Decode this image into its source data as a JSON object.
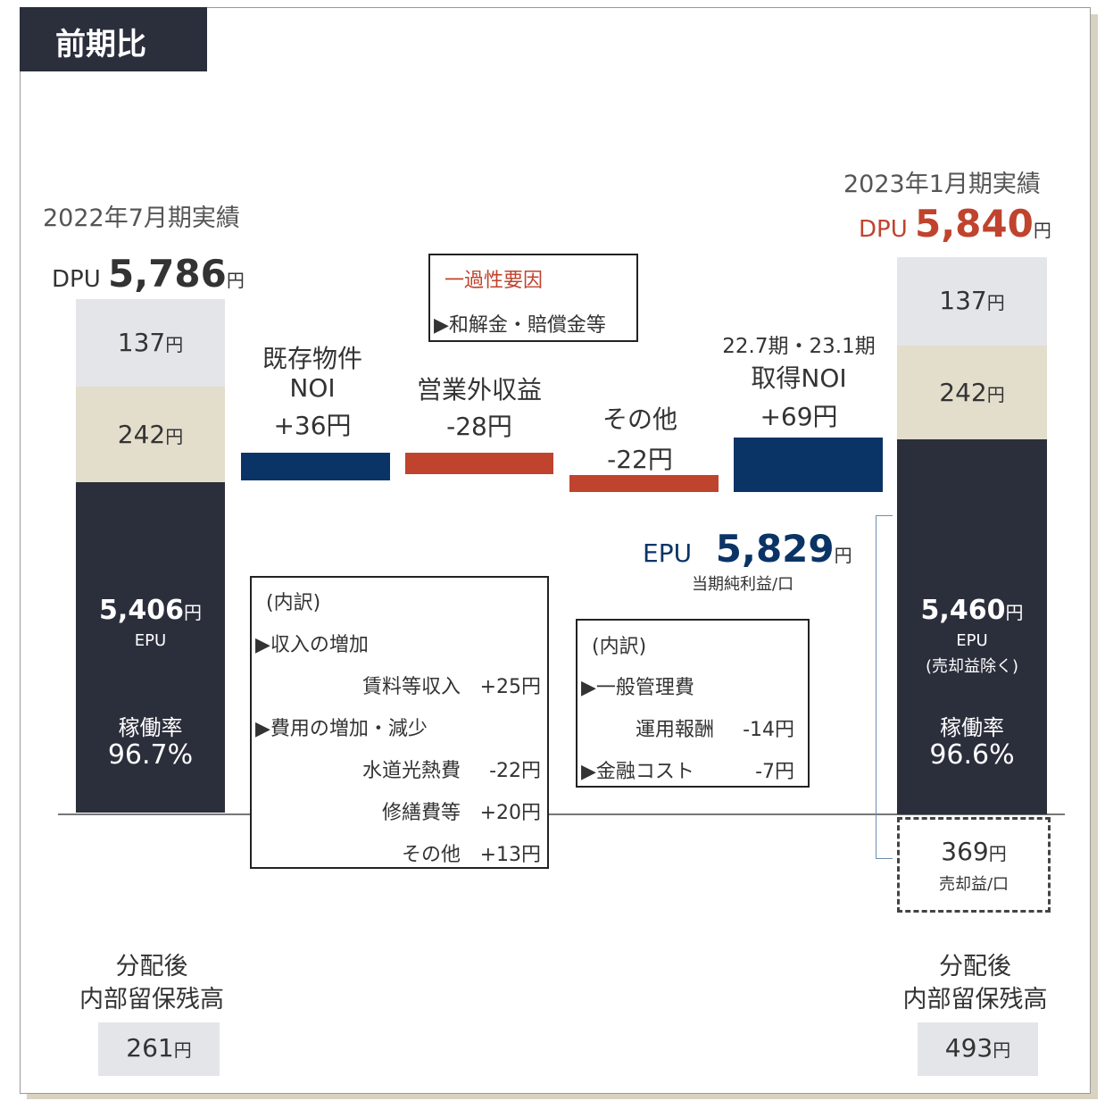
{
  "header": {
    "title": "前期比"
  },
  "unit": "円",
  "left": {
    "period": "2022年7月期実績",
    "dpu_label": "DPU",
    "dpu": "5,786",
    "segments": [
      "137",
      "242"
    ],
    "epu": "5,406",
    "epu_label": "EPU",
    "occupancy_label": "稼働率",
    "occupancy": "96.7%",
    "reserve_label": [
      "分配後",
      "内部留保残高"
    ],
    "reserve": "261"
  },
  "steps": [
    {
      "label": [
        "既存物件",
        "NOI"
      ],
      "change": "+36円"
    },
    {
      "label": [
        "営業外収益"
      ],
      "change": "-28円"
    },
    {
      "label": [
        "その他"
      ],
      "change": "-22円"
    },
    {
      "label": [
        "22.7期・23.1期",
        "取得NOI"
      ],
      "change": "+69円"
    }
  ],
  "note": {
    "title": "一過性要因",
    "item": "▶和解金・賠償金等"
  },
  "breakdown_noi": {
    "title": "(内訳)",
    "rows": [
      [
        "▶収入の増加",
        ""
      ],
      [
        "賃料等収入",
        "+25円"
      ],
      [
        "▶費用の増加・減少",
        ""
      ],
      [
        "水道光熱費",
        "-22円"
      ],
      [
        "修繕費等",
        "+20円"
      ],
      [
        "その他",
        "+13円"
      ]
    ]
  },
  "breakdown_other": {
    "title": "(内訳)",
    "rows": [
      [
        "▶一般管理費",
        ""
      ],
      [
        "運用報酬",
        "-14円"
      ],
      [
        "▶金融コスト",
        "-7円"
      ]
    ]
  },
  "epu_total": {
    "label": "EPU",
    "value": "5,829",
    "note": "当期純利益/口"
  },
  "right": {
    "period": "2023年1月期実績",
    "dpu_label": "DPU",
    "dpu": "5,840",
    "segments": [
      "137",
      "242"
    ],
    "epu": "5,460",
    "epu_label": "EPU",
    "epu_note": "(売却益除く)",
    "occupancy_label": "稼働率",
    "occupancy": "96.6%",
    "gain": "369",
    "gain_label": "売却益/口",
    "reserve_label": [
      "分配後",
      "内部留保残高"
    ],
    "reserve": "493"
  }
}
